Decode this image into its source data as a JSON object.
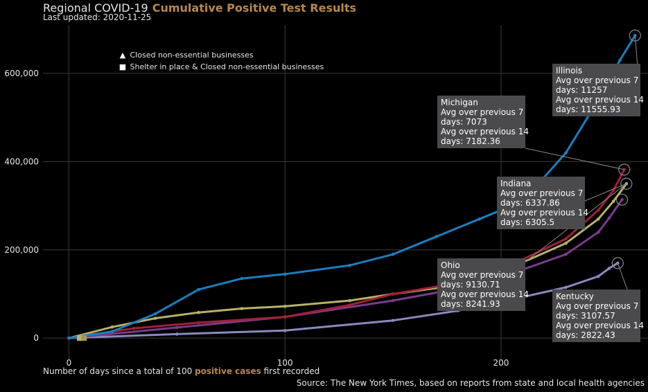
{
  "header": {
    "title_main": "Regional COVID-19",
    "title_accent": "Cumulative Positive Test Results",
    "last_updated": "Last updated: 2020-11-25"
  },
  "footer": {
    "xlabel_pre": "Number of days since a total of 100",
    "xlabel_accent": "positive cases",
    "xlabel_post": "first recorded",
    "source": "Source: The New York Times, based on reports from state and local health agencies"
  },
  "legend": {
    "triangle_label": "Closed non-essential businesses",
    "square_label": "Shelter in place & Closed non-essential businesses",
    "triangle_icon": "triangle-icon",
    "square_icon": "square-icon"
  },
  "tooltips": {
    "illinois": {
      "state": "Illinois",
      "l1": "Avg over previous 7",
      "l2": "days: 11257",
      "l3": "Avg over previous 14",
      "l4": "days: 11555.93"
    },
    "michigan": {
      "state": "Michigan",
      "l1": "Avg over previous 7",
      "l2": "days: 7073",
      "l3": "Avg over previous 14",
      "l4": "days: 7182.36"
    },
    "indiana": {
      "state": "Indiana",
      "l1": "Avg over previous 7",
      "l2": "days: 6337.86",
      "l3": "Avg over previous 14",
      "l4": "days: 6305.5"
    },
    "ohio": {
      "state": "Ohio",
      "l1": "Avg over previous 7",
      "l2": "days: 9130.71",
      "l3": "Avg over previous 14",
      "l4": "days: 8241.93"
    },
    "kentucky": {
      "state": "Kentucky",
      "l1": "Avg over previous 7",
      "l2": "days: 3107.57",
      "l3": "Avg over previous 14",
      "l4": "days: 2822.43"
    }
  },
  "chart_data": {
    "type": "line",
    "title": "Regional COVID-19 Cumulative Positive Test Results",
    "xlabel": "Number of days since a total of 100 positive cases first recorded",
    "ylabel": "",
    "xlim": [
      -12,
      268
    ],
    "ylim": [
      -50000,
      710000
    ],
    "x_ticks": [
      0,
      100,
      200
    ],
    "x_tick_labels": [
      "0",
      "100",
      "200"
    ],
    "y_ticks": [
      0,
      200000,
      400000,
      600000
    ],
    "y_tick_labels": [
      "0",
      "200,000",
      "400,000",
      "600,000"
    ],
    "grid": true,
    "series": [
      {
        "name": "Kentucky",
        "color": "#8a8ac0",
        "x": [
          0,
          50,
          100,
          150,
          180,
          200,
          230,
          245,
          250,
          254
        ],
        "y": [
          0,
          9000,
          17000,
          40000,
          62000,
          82000,
          115000,
          140000,
          158000,
          170000
        ]
      },
      {
        "name": "Indiana",
        "color": "#7a3b8c",
        "x": [
          0,
          50,
          100,
          150,
          180,
          200,
          230,
          245,
          250,
          256
        ],
        "y": [
          0,
          24000,
          48000,
          85000,
          112000,
          138000,
          190000,
          240000,
          272000,
          314000
        ]
      },
      {
        "name": "Ohio",
        "color": "#b8b268",
        "x": [
          0,
          20,
          40,
          60,
          80,
          100,
          130,
          150,
          180,
          200,
          230,
          245,
          252,
          258
        ],
        "y": [
          0,
          25000,
          45000,
          58000,
          67000,
          72000,
          85000,
          100000,
          120000,
          150000,
          215000,
          270000,
          310000,
          350000
        ]
      },
      {
        "name": "Michigan",
        "color": "#a0203a",
        "x": [
          0,
          30,
          60,
          100,
          130,
          150,
          180,
          200,
          230,
          245,
          252,
          257
        ],
        "y": [
          0,
          22000,
          35000,
          48000,
          75000,
          100000,
          125000,
          155000,
          225000,
          290000,
          335000,
          382000
        ]
      },
      {
        "name": "Illinois",
        "color": "#1a7fc0",
        "x": [
          0,
          20,
          40,
          60,
          80,
          100,
          130,
          150,
          170,
          190,
          210,
          230,
          245,
          255,
          262
        ],
        "y": [
          0,
          15000,
          55000,
          110000,
          135000,
          145000,
          165000,
          190000,
          230000,
          270000,
          310000,
          420000,
          540000,
          630000,
          686000
        ]
      }
    ],
    "tooltips": [
      {
        "name": "Illinois",
        "avg7": 11257,
        "avg14": 11555.93
      },
      {
        "name": "Michigan",
        "avg7": 7073,
        "avg14": 7182.36
      },
      {
        "name": "Indiana",
        "avg7": 6337.86,
        "avg14": 6305.5
      },
      {
        "name": "Ohio",
        "avg7": 9130.71,
        "avg14": 8241.93
      },
      {
        "name": "Kentucky",
        "avg7": 3107.57,
        "avg14": 2822.43
      }
    ]
  }
}
